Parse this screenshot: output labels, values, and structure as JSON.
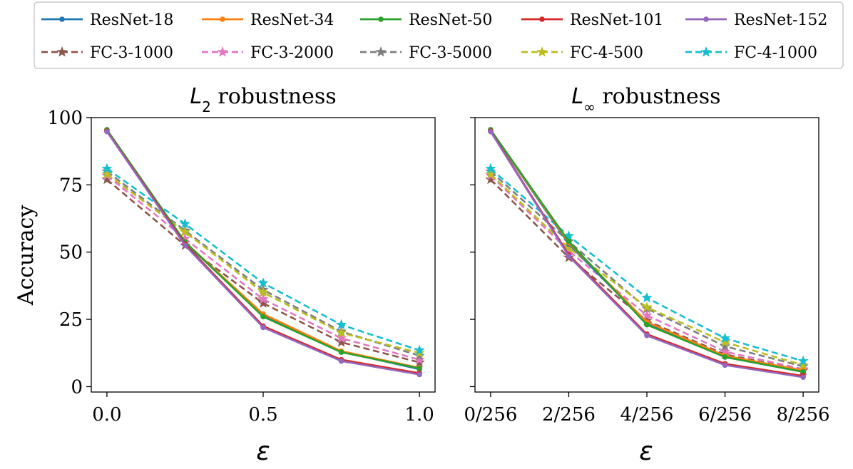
{
  "chart_data": [
    {
      "type": "line",
      "title_math": "L",
      "title_sub": "2",
      "title_rest": " robustness",
      "xlabel": "ε",
      "ylabel": "Accuracy",
      "x": [
        0.0,
        0.25,
        0.5,
        0.75,
        1.0
      ],
      "xticks": [
        0.0,
        0.5,
        1.0
      ],
      "xtick_labels": [
        "0.0",
        "0.5",
        "1.0"
      ],
      "xlim": [
        -0.05,
        1.05
      ],
      "yticks": [
        0,
        25,
        50,
        75,
        100
      ],
      "ytick_labels": [
        "0",
        "25",
        "50",
        "75",
        "100"
      ],
      "ylim": [
        -2,
        100
      ],
      "series": [
        {
          "name": "ResNet-18",
          "values": [
            95.3,
            53.5,
            26.5,
            13.0,
            6.5
          ]
        },
        {
          "name": "ResNet-34",
          "values": [
            95.4,
            53.7,
            27.0,
            13.2,
            7.0
          ]
        },
        {
          "name": "ResNet-50",
          "values": [
            95.5,
            53.8,
            26.0,
            12.8,
            6.8
          ]
        },
        {
          "name": "ResNet-101",
          "values": [
            95.0,
            53.0,
            22.5,
            10.0,
            5.0
          ]
        },
        {
          "name": "ResNet-152",
          "values": [
            94.8,
            52.5,
            22.0,
            9.5,
            4.5
          ]
        },
        {
          "name": "FC-3-1000",
          "values": [
            77.0,
            52.5,
            31.0,
            16.5,
            9.0
          ]
        },
        {
          "name": "FC-3-2000",
          "values": [
            78.5,
            55.0,
            32.5,
            18.0,
            10.0
          ]
        },
        {
          "name": "FC-3-5000",
          "values": [
            80.0,
            58.0,
            36.0,
            20.5,
            11.5
          ]
        },
        {
          "name": "FC-4-500",
          "values": [
            79.0,
            57.5,
            35.0,
            20.0,
            12.5
          ]
        },
        {
          "name": "FC-4-1000",
          "values": [
            81.0,
            60.5,
            38.5,
            23.0,
            13.5
          ]
        }
      ]
    },
    {
      "type": "line",
      "title_math": "L",
      "title_sub": "∞",
      "title_rest": " robustness",
      "xlabel": "ε",
      "x": [
        0,
        2,
        4,
        6,
        8
      ],
      "xticks": [
        0,
        2,
        4,
        6,
        8
      ],
      "xtick_labels": [
        "0/256",
        "2/256",
        "4/256",
        "6/256",
        "8/256"
      ],
      "xlim": [
        -0.4,
        8.4
      ],
      "yticks": [
        0,
        25,
        50,
        75,
        100
      ],
      "ylim": [
        -2,
        100
      ],
      "series": [
        {
          "name": "ResNet-18",
          "values": [
            95.3,
            53.0,
            23.5,
            11.0,
            5.5
          ]
        },
        {
          "name": "ResNet-34",
          "values": [
            95.4,
            53.5,
            24.0,
            11.5,
            6.0
          ]
        },
        {
          "name": "ResNet-50",
          "values": [
            95.5,
            54.0,
            23.0,
            11.0,
            5.5
          ]
        },
        {
          "name": "ResNet-101",
          "values": [
            95.0,
            49.0,
            19.5,
            8.5,
            4.0
          ]
        },
        {
          "name": "ResNet-152",
          "values": [
            94.8,
            48.5,
            19.0,
            8.0,
            3.5
          ]
        },
        {
          "name": "FC-3-1000",
          "values": [
            77.0,
            48.0,
            24.5,
            12.0,
            6.0
          ]
        },
        {
          "name": "FC-3-2000",
          "values": [
            78.5,
            50.5,
            26.5,
            13.0,
            6.5
          ]
        },
        {
          "name": "FC-3-5000",
          "values": [
            80.0,
            54.0,
            29.0,
            15.0,
            7.5
          ]
        },
        {
          "name": "FC-4-500",
          "values": [
            79.0,
            51.5,
            29.5,
            16.5,
            8.0
          ]
        },
        {
          "name": "FC-4-1000",
          "values": [
            81.0,
            56.0,
            33.0,
            18.0,
            9.5
          ]
        }
      ]
    }
  ],
  "legend": [
    {
      "name": "ResNet-18",
      "color": "#1f77b4",
      "marker": "dot",
      "dashed": false
    },
    {
      "name": "ResNet-34",
      "color": "#ff7f0e",
      "marker": "dot",
      "dashed": false
    },
    {
      "name": "ResNet-50",
      "color": "#2ca02c",
      "marker": "dot",
      "dashed": false
    },
    {
      "name": "ResNet-101",
      "color": "#d62728",
      "marker": "dot",
      "dashed": false
    },
    {
      "name": "ResNet-152",
      "color": "#9467bd",
      "marker": "dot",
      "dashed": false
    },
    {
      "name": "FC-3-1000",
      "color": "#8c564b",
      "marker": "star",
      "dashed": true
    },
    {
      "name": "FC-3-2000",
      "color": "#e377c2",
      "marker": "star",
      "dashed": true
    },
    {
      "name": "FC-3-5000",
      "color": "#7f7f7f",
      "marker": "star",
      "dashed": true
    },
    {
      "name": "FC-4-500",
      "color": "#bcbd22",
      "marker": "star",
      "dashed": true
    },
    {
      "name": "FC-4-1000",
      "color": "#17becf",
      "marker": "star",
      "dashed": true
    }
  ],
  "legend_location": "top"
}
